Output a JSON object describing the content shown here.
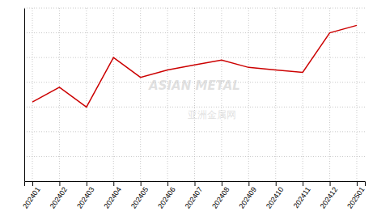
{
  "chart_data": {
    "type": "line",
    "categories": [
      "202401",
      "202402",
      "202403",
      "202404",
      "202405",
      "202406",
      "202407",
      "202408",
      "202409",
      "202410",
      "202411",
      "202412",
      "202501"
    ],
    "values": [
      32,
      38,
      30,
      50,
      42,
      45,
      47,
      49,
      46,
      45,
      44,
      60,
      63
    ],
    "color": "#cc0000",
    "ylim": [
      0,
      70
    ],
    "yticks": [
      0,
      10,
      20,
      30,
      40,
      50,
      60,
      70
    ],
    "grid": true,
    "tick_labels": "x",
    "annotations": [
      "ASIAN METAL",
      "亚洲金属网"
    ]
  }
}
